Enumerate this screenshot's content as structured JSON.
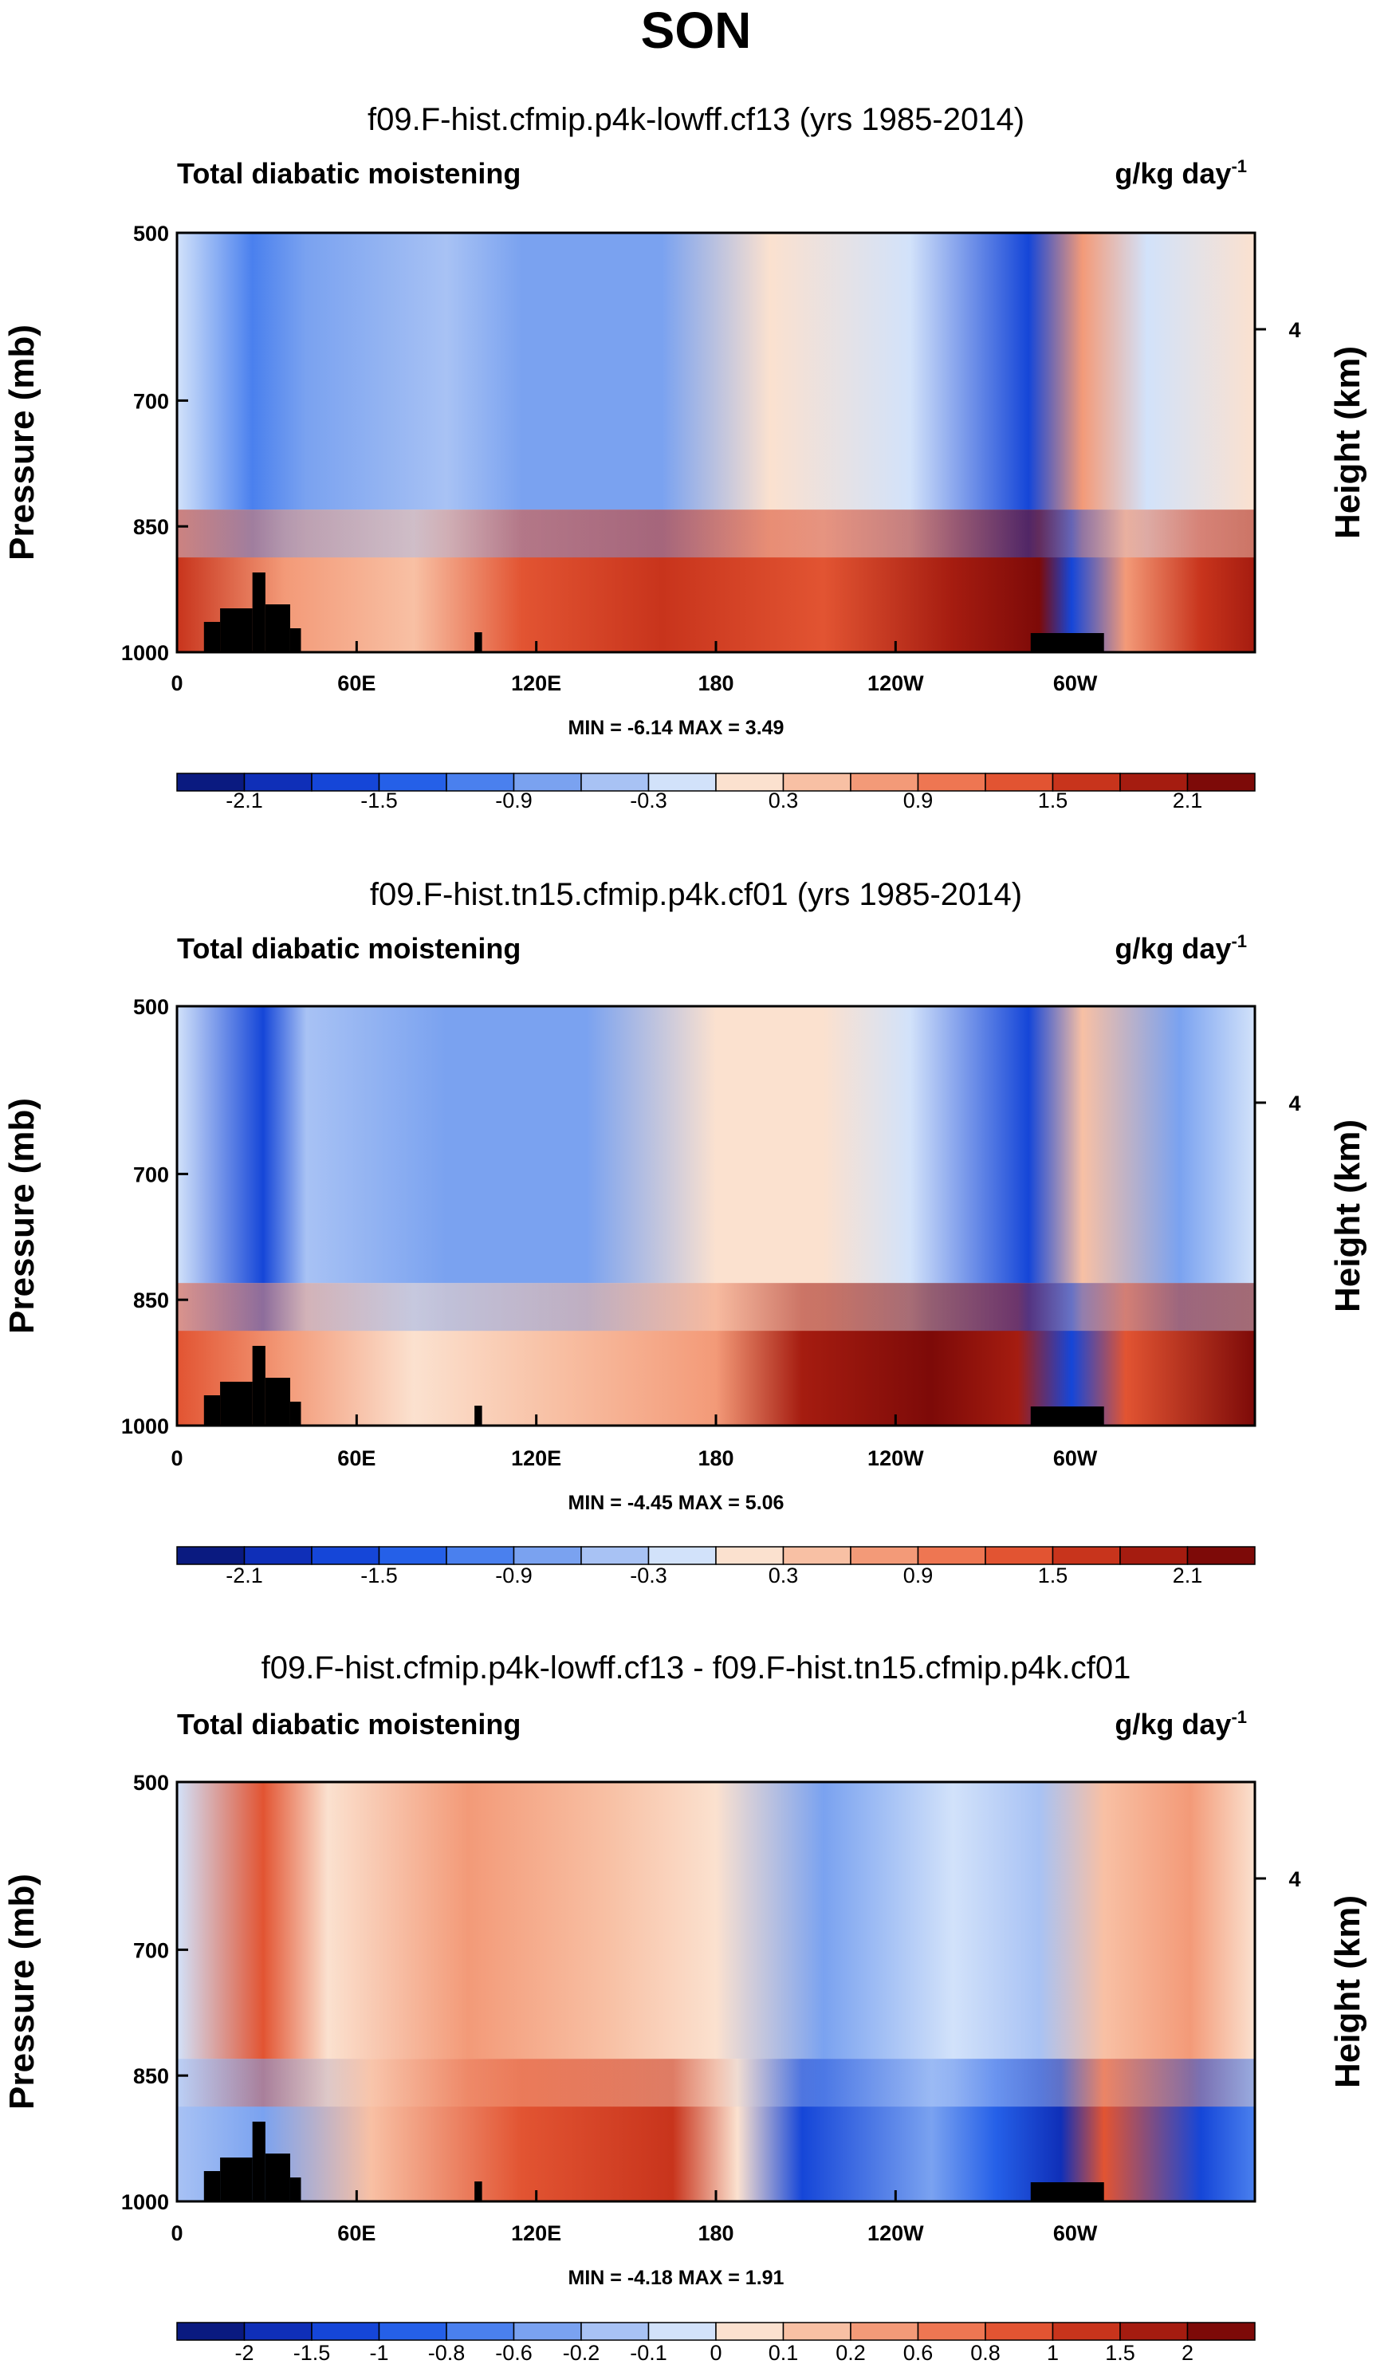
{
  "figure_title": "SON",
  "chart_data": [
    {
      "type": "heatmap",
      "title": "f09.F-hist.cfmip.p4k-lowff.cf13 (yrs 1985-2014)",
      "left_label": "Total diabatic moistening",
      "right_label": "g/kg day",
      "right_label_sup": "-1",
      "ylabel": "Pressure (mb)",
      "y2label": "Height (km)",
      "y_ticks": [
        "500",
        "700",
        "850",
        "1000"
      ],
      "y2_ticks": [
        "4"
      ],
      "x_ticks": [
        "0",
        "60E",
        "120E",
        "180",
        "120W",
        "60W"
      ],
      "stats": "MIN = -6.14  MAX =  3.49",
      "colorbar_labels": [
        "-2.1",
        "-1.5",
        "-0.9",
        "-0.3",
        "0.3",
        "0.9",
        "1.5",
        "2.1"
      ],
      "colorbar_colors": [
        "#0a1a80",
        "#0f2fb8",
        "#1546d8",
        "#2560e8",
        "#4a80ee",
        "#7aa2f0",
        "#a8c2f4",
        "#d2e2fa",
        "#fbe1cf",
        "#f8c0a4",
        "#f39a78",
        "#ee7652",
        "#e25432",
        "#c8341c",
        "#a51c10",
        "#7d0a08"
      ],
      "ylim": [
        1000,
        500
      ],
      "xlim": [
        0,
        360
      ]
    },
    {
      "type": "heatmap",
      "title": "f09.F-hist.tn15.cfmip.p4k.cf01 (yrs 1985-2014)",
      "left_label": "Total diabatic moistening",
      "right_label": "g/kg day",
      "right_label_sup": "-1",
      "ylabel": "Pressure (mb)",
      "y2label": "Height (km)",
      "y_ticks": [
        "500",
        "700",
        "850",
        "1000"
      ],
      "y2_ticks": [
        "4"
      ],
      "x_ticks": [
        "0",
        "60E",
        "120E",
        "180",
        "120W",
        "60W"
      ],
      "stats": "MIN = -4.45  MAX =  5.06",
      "colorbar_labels": [
        "-2.1",
        "-1.5",
        "-0.9",
        "-0.3",
        "0.3",
        "0.9",
        "1.5",
        "2.1"
      ],
      "colorbar_colors": [
        "#0a1a80",
        "#0f2fb8",
        "#1546d8",
        "#2560e8",
        "#4a80ee",
        "#7aa2f0",
        "#a8c2f4",
        "#d2e2fa",
        "#fbe1cf",
        "#f8c0a4",
        "#f39a78",
        "#ee7652",
        "#e25432",
        "#c8341c",
        "#a51c10",
        "#7d0a08"
      ],
      "ylim": [
        1000,
        500
      ],
      "xlim": [
        0,
        360
      ]
    },
    {
      "type": "heatmap",
      "title": "f09.F-hist.cfmip.p4k-lowff.cf13 - f09.F-hist.tn15.cfmip.p4k.cf01",
      "left_label": "Total diabatic moistening",
      "right_label": "g/kg day",
      "right_label_sup": "-1",
      "ylabel": "Pressure (mb)",
      "y2label": "Height (km)",
      "y_ticks": [
        "500",
        "700",
        "850",
        "1000"
      ],
      "y2_ticks": [
        "4"
      ],
      "x_ticks": [
        "0",
        "60E",
        "120E",
        "180",
        "120W",
        "60W"
      ],
      "stats": "MIN = -4.18  MAX =  1.91",
      "colorbar_labels": [
        "-2",
        "-1.5",
        "-1",
        "-0.8",
        "-0.6",
        "-0.2",
        "-0.1",
        "0",
        "0.1",
        "0.2",
        "0.6",
        "0.8",
        "1",
        "1.5",
        "2"
      ],
      "colorbar_colors": [
        "#0a1a80",
        "#0f2fb8",
        "#1546d8",
        "#2560e8",
        "#4a80ee",
        "#7aa2f0",
        "#a8c2f4",
        "#d2e2fa",
        "#fbe1cf",
        "#f8c0a4",
        "#f39a78",
        "#ee7652",
        "#e25432",
        "#c8341c",
        "#a51c10",
        "#7d0a08"
      ],
      "ylim": [
        1000,
        500
      ],
      "xlim": [
        0,
        360
      ]
    }
  ]
}
